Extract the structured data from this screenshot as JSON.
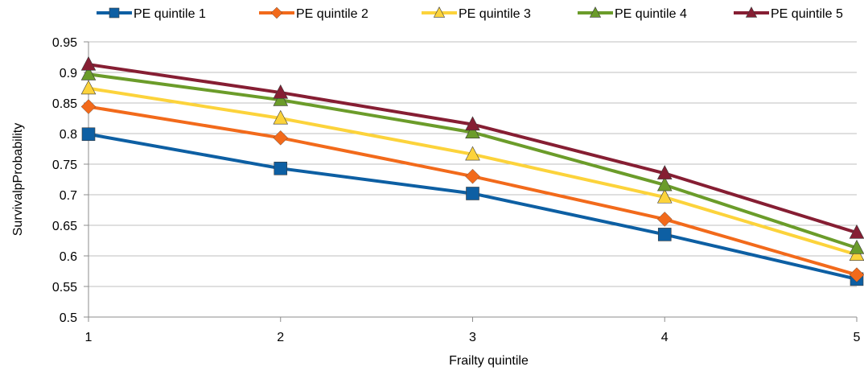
{
  "chart_data": {
    "type": "line",
    "title": "",
    "xlabel": "Frailty quintile",
    "ylabel": "SurvivalpProbability",
    "x": [
      1,
      2,
      3,
      4,
      5
    ],
    "x_ticks": [
      "1",
      "2",
      "3",
      "4",
      "5"
    ],
    "ylim": [
      0.5,
      0.95
    ],
    "y_ticks": [
      "0.5",
      "0.55",
      "0.6",
      "0.65",
      "0.7",
      "0.75",
      "0.8",
      "0.85",
      "0.9",
      "0.95"
    ],
    "grid": "horizontal",
    "legend_position": "top",
    "series": [
      {
        "name": "PE quintile 1",
        "color": "#0d5fa3",
        "marker": "square",
        "values": [
          0.799,
          0.743,
          0.702,
          0.635,
          0.562
        ]
      },
      {
        "name": "PE quintile 2",
        "color": "#f26a1b",
        "marker": "diamond",
        "values": [
          0.844,
          0.793,
          0.73,
          0.66,
          0.569
        ]
      },
      {
        "name": "PE quintile 3",
        "color": "#fcd33b",
        "marker": "triangle",
        "values": [
          0.874,
          0.825,
          0.766,
          0.696,
          0.602
        ]
      },
      {
        "name": "PE quintile 4",
        "color": "#6b9c2a",
        "marker": "triangle",
        "values": [
          0.897,
          0.855,
          0.802,
          0.716,
          0.613
        ]
      },
      {
        "name": "PE quintile 5",
        "color": "#861e33",
        "marker": "triangle",
        "values": [
          0.913,
          0.867,
          0.815,
          0.735,
          0.638
        ]
      }
    ]
  }
}
